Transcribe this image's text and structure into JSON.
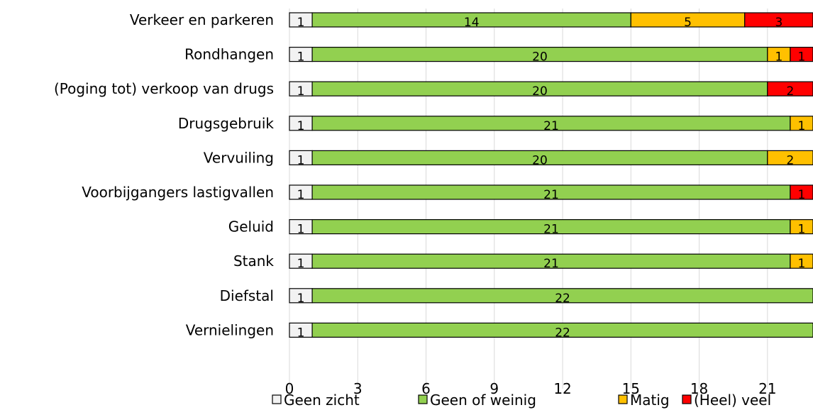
{
  "chart_data": {
    "type": "bar",
    "orientation": "horizontal",
    "stacked": true,
    "title": "",
    "xlabel": "",
    "ylabel": "",
    "categories": [
      "Verkeer en parkeren",
      "Rondhangen",
      "(Poging tot) verkoop van drugs",
      "Drugsgebruik",
      "Vervuiling",
      "Voorbijgangers lastigvallen",
      "Geluid",
      "Stank",
      "Diefstal",
      "Vernielingen"
    ],
    "series": [
      {
        "name": "Geen zicht",
        "color": "#f2f2f2",
        "values": [
          1,
          1,
          1,
          1,
          1,
          1,
          1,
          1,
          1,
          1
        ]
      },
      {
        "name": "Geen of weinig",
        "color": "#92d050",
        "values": [
          14,
          20,
          20,
          21,
          20,
          21,
          21,
          21,
          22,
          22
        ]
      },
      {
        "name": "Matig",
        "color": "#ffc000",
        "values": [
          5,
          1,
          0,
          1,
          2,
          0,
          1,
          1,
          0,
          0
        ]
      },
      {
        "name": "(Heel) veel",
        "color": "#ff0000",
        "values": [
          3,
          1,
          2,
          0,
          0,
          1,
          0,
          0,
          0,
          0
        ]
      }
    ],
    "xlim": [
      0,
      23
    ],
    "xticks": [
      0,
      3,
      6,
      9,
      12,
      15,
      18,
      21
    ],
    "grid": true,
    "legend_position": "bottom"
  }
}
